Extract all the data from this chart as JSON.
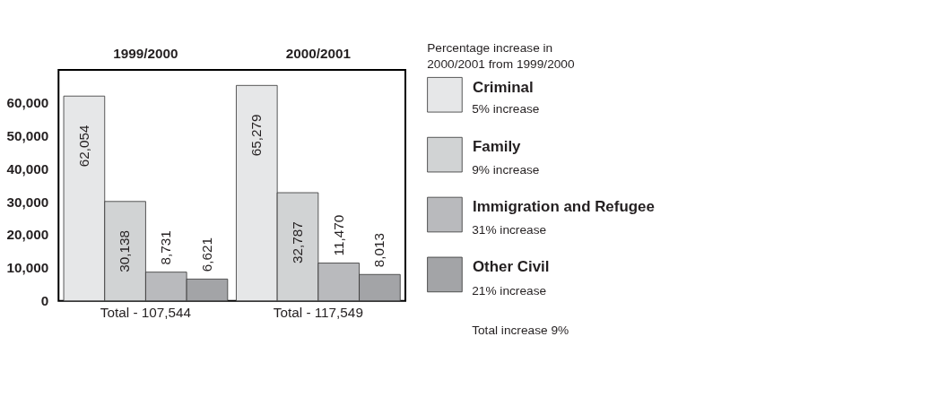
{
  "chart_data": {
    "type": "bar",
    "categories": [
      "1999/2000",
      "2000/2001"
    ],
    "ylim": [
      0,
      70000
    ],
    "yticks": [
      0,
      {
        "value": 10000,
        "label": "10,000"
      },
      {
        "value": 20000,
        "label": "20,000"
      },
      {
        "value": 30000,
        "label": "30,000"
      },
      {
        "value": 40000,
        "label": "40,000"
      },
      {
        "value": 50000,
        "label": "50,000"
      },
      {
        "value": 60000,
        "label": "60,000"
      }
    ],
    "legend": "right",
    "legend_title": "Percentage increase in 2000/2001 from 1999/2000",
    "series": [
      {
        "name": "Criminal",
        "color": "#e6e7e8",
        "values": [
          62054,
          65279
        ],
        "value_labels": [
          "62,054",
          "65,279"
        ]
      },
      {
        "name": "Family",
        "color": "#d1d3d4",
        "values": [
          30138,
          32787
        ],
        "value_labels": [
          "30,138",
          "32,787"
        ]
      },
      {
        "name": "Immigration and Refugee",
        "color": "#b9babd",
        "values": [
          8731,
          11470
        ],
        "value_labels": [
          "8,731",
          "11,470"
        ]
      },
      {
        "name": "Other Civil",
        "color": "#a3a4a7",
        "values": [
          6621,
          8013
        ],
        "value_labels": [
          "6,621",
          "8,013"
        ]
      }
    ],
    "annotations": [
      "Total - 107,544",
      "Total - 117,549",
      "5% increase",
      "9% increase",
      "31% increase",
      "21% increase",
      "Total increase 9%"
    ]
  }
}
